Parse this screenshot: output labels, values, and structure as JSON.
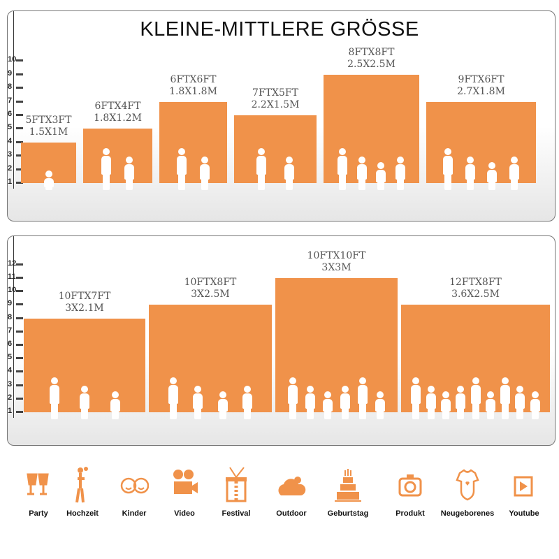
{
  "title": "KLEINE-MITTLERE GRÖSSE",
  "accent": "#f0924a",
  "panel1": {
    "ruler": [
      "1",
      "2",
      "3",
      "4",
      "5",
      "6",
      "7",
      "8",
      "9",
      "10"
    ],
    "sizes": [
      {
        "ft": "5FTX3FT",
        "m": "1.5X1M",
        "height_ft": 3,
        "people": 1
      },
      {
        "ft": "6FTX4FT",
        "m": "1.8X1.2M",
        "height_ft": 4,
        "people": 2
      },
      {
        "ft": "6FTX6FT",
        "m": "1.8X1.8M",
        "height_ft": 6,
        "people": 2
      },
      {
        "ft": "7FTX5FT",
        "m": "2.2X1.5M",
        "height_ft": 5,
        "people": 2
      },
      {
        "ft": "8FTX8FT",
        "m": "2.5X2.5M",
        "height_ft": 8,
        "people": 4
      },
      {
        "ft": "9FTX6FT",
        "m": "2.7X1.8M",
        "height_ft": 6,
        "people": 4
      }
    ]
  },
  "panel2": {
    "ruler": [
      "1",
      "2",
      "3",
      "4",
      "5",
      "6",
      "7",
      "8",
      "9",
      "10",
      "11",
      "12"
    ],
    "sizes": [
      {
        "ft": "10FTX7FT",
        "m": "3X2.1M",
        "height_ft": 7,
        "people": 3
      },
      {
        "ft": "10FTX8FT",
        "m": "3X2.5M",
        "height_ft": 8,
        "people": 4
      },
      {
        "ft": "10FTX10FT",
        "m": "3X3M",
        "height_ft": 10,
        "people": 6
      },
      {
        "ft": "12FTX8FT",
        "m": "3.6X2.5M",
        "height_ft": 8,
        "people": 9
      }
    ]
  },
  "uses": [
    {
      "label": "Party",
      "icon": "champagne-glasses-icon"
    },
    {
      "label": "Hochzeit",
      "icon": "wedding-couple-icon"
    },
    {
      "label": "Kinder",
      "icon": "kids-faces-icon"
    },
    {
      "label": "Video",
      "icon": "movie-camera-icon"
    },
    {
      "label": "Festival",
      "icon": "gift-box-icon"
    },
    {
      "label": "Outdoor",
      "icon": "cloud-icon"
    },
    {
      "label": "Geburtstag",
      "icon": "birthday-cake-icon"
    },
    {
      "label": "Produkt",
      "icon": "camera-icon"
    },
    {
      "label": "Neugeborenes",
      "icon": "baby-bodysuit-icon"
    },
    {
      "label": "Youtube",
      "icon": "play-button-icon"
    }
  ]
}
